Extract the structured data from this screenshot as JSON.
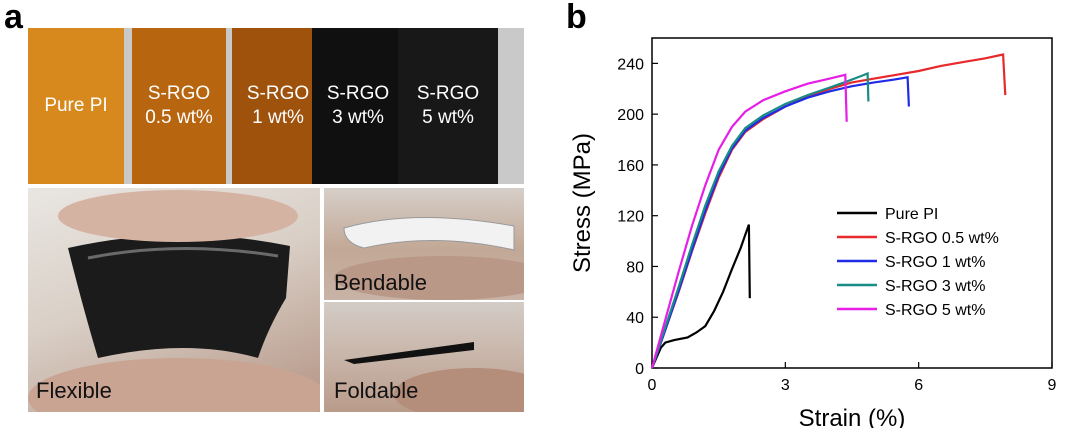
{
  "panel_a": {
    "letter": "a",
    "strips": [
      {
        "line1": "Pure PI",
        "line2": "",
        "color": "#d8891e"
      },
      {
        "line1": "S-RGO",
        "line2": "0.5 wt%",
        "color": "#b8650f"
      },
      {
        "line1": "S-RGO",
        "line2": "1 wt%",
        "color": "#9e520c"
      },
      {
        "line1": "S-RGO",
        "line2": "3 wt%",
        "color": "#101010"
      },
      {
        "line1": "S-RGO",
        "line2": "5 wt%",
        "color": "#181818"
      }
    ],
    "photo_labels": {
      "flexible": "Flexible",
      "bendable": "Bendable",
      "foldable": "Foldable"
    }
  },
  "panel_b": {
    "letter": "b"
  },
  "chart_data": {
    "type": "line",
    "xlabel": "Strain (%)",
    "ylabel": "Stress (MPa)",
    "xlim": [
      0,
      9
    ],
    "ylim": [
      0,
      260
    ],
    "xticks": [
      0,
      3,
      6,
      9
    ],
    "yticks": [
      0,
      40,
      80,
      120,
      160,
      200,
      240
    ],
    "legend_position": "right",
    "series": [
      {
        "name": "Pure PI",
        "color": "#000000",
        "points": [
          [
            0,
            0
          ],
          [
            0.1,
            8
          ],
          [
            0.2,
            16
          ],
          [
            0.3,
            20
          ],
          [
            0.5,
            22
          ],
          [
            0.8,
            24
          ],
          [
            1.0,
            28
          ],
          [
            1.2,
            33
          ],
          [
            1.4,
            45
          ],
          [
            1.6,
            60
          ],
          [
            1.8,
            78
          ],
          [
            2.0,
            95
          ],
          [
            2.1,
            105
          ],
          [
            2.18,
            113
          ],
          [
            2.2,
            55
          ]
        ]
      },
      {
        "name": "S-RGO 0.5 wt%",
        "color": "#e8292b",
        "points": [
          [
            0,
            0
          ],
          [
            0.3,
            30
          ],
          [
            0.6,
            60
          ],
          [
            0.9,
            92
          ],
          [
            1.2,
            122
          ],
          [
            1.5,
            150
          ],
          [
            1.8,
            172
          ],
          [
            2.1,
            186
          ],
          [
            2.5,
            196
          ],
          [
            3,
            206
          ],
          [
            3.5,
            214
          ],
          [
            4,
            220
          ],
          [
            4.5,
            225
          ],
          [
            5,
            228
          ],
          [
            5.5,
            231
          ],
          [
            6,
            234
          ],
          [
            6.5,
            238
          ],
          [
            7,
            241
          ],
          [
            7.5,
            244
          ],
          [
            7.9,
            247
          ],
          [
            7.95,
            215
          ]
        ]
      },
      {
        "name": "S-RGO 1 wt%",
        "color": "#1f2be6",
        "points": [
          [
            0,
            0
          ],
          [
            0.3,
            30
          ],
          [
            0.6,
            61
          ],
          [
            0.9,
            93
          ],
          [
            1.2,
            124
          ],
          [
            1.5,
            152
          ],
          [
            1.8,
            173
          ],
          [
            2.1,
            187
          ],
          [
            2.5,
            197
          ],
          [
            3,
            206
          ],
          [
            3.5,
            213
          ],
          [
            4,
            218
          ],
          [
            4.5,
            222
          ],
          [
            5,
            225
          ],
          [
            5.4,
            227
          ],
          [
            5.75,
            229
          ],
          [
            5.78,
            206
          ]
        ]
      },
      {
        "name": "S-RGO 3 wt%",
        "color": "#1a8c86",
        "points": [
          [
            0,
            0
          ],
          [
            0.3,
            32
          ],
          [
            0.6,
            64
          ],
          [
            0.9,
            97
          ],
          [
            1.2,
            128
          ],
          [
            1.5,
            155
          ],
          [
            1.8,
            175
          ],
          [
            2.1,
            189
          ],
          [
            2.5,
            199
          ],
          [
            3,
            208
          ],
          [
            3.5,
            215
          ],
          [
            4,
            221
          ],
          [
            4.4,
            226
          ],
          [
            4.7,
            230
          ],
          [
            4.85,
            232
          ],
          [
            4.87,
            210
          ]
        ]
      },
      {
        "name": "S-RGO 5 wt%",
        "color": "#e61ee6",
        "points": [
          [
            0,
            0
          ],
          [
            0.3,
            38
          ],
          [
            0.6,
            76
          ],
          [
            0.9,
            112
          ],
          [
            1.2,
            144
          ],
          [
            1.5,
            172
          ],
          [
            1.8,
            190
          ],
          [
            2.1,
            202
          ],
          [
            2.5,
            211
          ],
          [
            3,
            218
          ],
          [
            3.5,
            224
          ],
          [
            4,
            228
          ],
          [
            4.35,
            231
          ],
          [
            4.38,
            194
          ]
        ]
      }
    ]
  }
}
